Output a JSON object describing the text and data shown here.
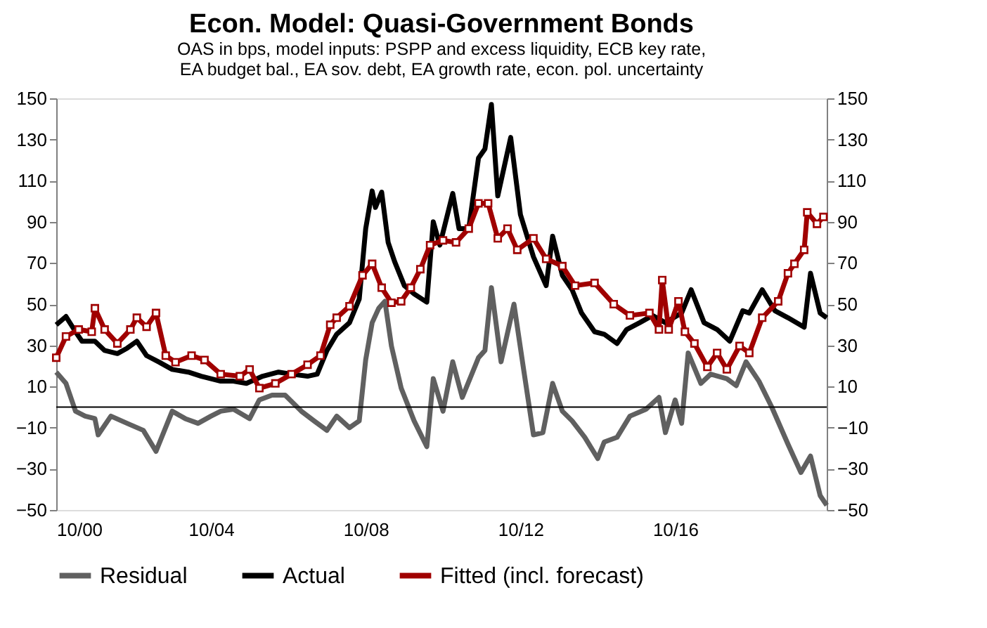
{
  "chart_data": {
    "type": "line",
    "title": "Econ. Model: Quasi-Government Bonds",
    "subtitle": "OAS in bps, model inputs: PSPP and excess liquidity, ECB key rate, EA budget bal., EA sov. debt, EA growth rate, econ. pol. uncertainty",
    "xlim": [
      "2000-10",
      "2020-09"
    ],
    "xticks": [
      {
        "value": "2000-10",
        "label": "10/00"
      },
      {
        "value": "2004-10",
        "label": "10/04"
      },
      {
        "value": "2008-10",
        "label": "10/08"
      },
      {
        "value": "2012-10",
        "label": "10/12"
      },
      {
        "value": "2016-10",
        "label": "10/16"
      }
    ],
    "ylim": [
      -50,
      150
    ],
    "yticks": [
      -50,
      -30,
      -10,
      10,
      30,
      50,
      70,
      90,
      110,
      130,
      150
    ],
    "y2lim": [
      -50,
      150
    ],
    "y2ticks": [
      -50,
      -30,
      -10,
      10,
      30,
      50,
      70,
      90,
      110,
      130,
      150
    ],
    "grid": false,
    "legend": "bottom",
    "ref_lines": [
      {
        "axis": "y",
        "value": 0,
        "color": "#000000"
      }
    ],
    "series": [
      {
        "name": "Residual",
        "color": "#606060",
        "marker": "none",
        "x": [
          "2000-10",
          "2001-01",
          "2001-04",
          "2001-07",
          "2001-10",
          "2001-11",
          "2002-03",
          "2002-08",
          "2003-01",
          "2003-05",
          "2003-10",
          "2004-02",
          "2004-06",
          "2004-10",
          "2005-01",
          "2005-05",
          "2005-10",
          "2006-01",
          "2006-05",
          "2006-09",
          "2007-02",
          "2007-06",
          "2007-10",
          "2008-01",
          "2008-05",
          "2008-08",
          "2008-10",
          "2008-12",
          "2009-02",
          "2009-04",
          "2009-06",
          "2009-09",
          "2010-01",
          "2010-05",
          "2010-07",
          "2010-10",
          "2011-01",
          "2011-04",
          "2011-09",
          "2011-11",
          "2012-01",
          "2012-04",
          "2012-08",
          "2012-11",
          "2013-02",
          "2013-05",
          "2013-08",
          "2013-11",
          "2014-02",
          "2014-06",
          "2014-10",
          "2014-12",
          "2015-04",
          "2015-08",
          "2016-01",
          "2016-05",
          "2016-07",
          "2016-10",
          "2016-12",
          "2017-02",
          "2017-06",
          "2017-09",
          "2018-02",
          "2018-05",
          "2018-08",
          "2018-12",
          "2019-04",
          "2019-09",
          "2020-01",
          "2020-04",
          "2020-07",
          "2020-09"
        ],
        "values": [
          17,
          11.5,
          -2,
          -4.4,
          -5.6,
          -13.5,
          -4.4,
          -7.9,
          -11.3,
          -21.5,
          -2,
          -5.6,
          -7.9,
          -4.4,
          -2,
          -1,
          -5.6,
          3.5,
          5.8,
          5.8,
          -2,
          -6.7,
          -11.3,
          -4.4,
          -10,
          -6.7,
          23,
          41,
          48,
          51.4,
          29.7,
          9.2,
          -6.7,
          -19.2,
          13.8,
          -2,
          22,
          4.7,
          24,
          27.5,
          58,
          22,
          50,
          18,
          -13.5,
          -12.4,
          11.5,
          -2,
          -6.7,
          -14.7,
          -25,
          -17,
          -14.7,
          -4.4,
          -1,
          4.7,
          -12.4,
          3.5,
          -7.9,
          26.3,
          11.5,
          16,
          13.8,
          10.4,
          22,
          12.6,
          0,
          -18,
          -31.8,
          -23.8,
          -43,
          -47.7
        ]
      },
      {
        "name": "Actual",
        "color": "#000000",
        "marker": "none",
        "x": [
          "2000-10",
          "2001-01",
          "2001-04",
          "2001-06",
          "2001-10",
          "2002-01",
          "2002-05",
          "2002-08",
          "2002-11",
          "2003-02",
          "2003-06",
          "2003-10",
          "2004-03",
          "2004-07",
          "2005-01",
          "2005-05",
          "2005-09",
          "2006-02",
          "2006-07",
          "2006-11",
          "2007-04",
          "2007-07",
          "2007-10",
          "2008-01",
          "2008-05",
          "2008-08",
          "2008-10",
          "2008-12",
          "2009-01",
          "2009-03",
          "2009-05",
          "2009-07",
          "2009-10",
          "2010-01",
          "2010-05",
          "2010-07",
          "2010-09",
          "2011-01",
          "2011-03",
          "2011-06",
          "2011-09",
          "2011-11",
          "2012-01",
          "2012-03",
          "2012-07",
          "2012-10",
          "2013-02",
          "2013-06",
          "2013-08",
          "2013-11",
          "2014-02",
          "2014-05",
          "2014-09",
          "2014-12",
          "2015-04",
          "2015-07",
          "2015-11",
          "2016-03",
          "2016-07",
          "2016-12",
          "2017-03",
          "2017-07",
          "2017-11",
          "2018-03",
          "2018-07",
          "2018-09",
          "2019-01",
          "2019-05",
          "2019-09",
          "2020-02",
          "2020-04",
          "2020-07",
          "2020-09"
        ],
        "values": [
          40,
          44,
          36.6,
          32,
          32,
          27.5,
          26,
          28.6,
          32,
          25,
          21.8,
          18.3,
          17,
          15,
          12.6,
          12.6,
          11.5,
          15,
          17,
          16,
          15,
          16,
          27.5,
          35.4,
          41,
          52.5,
          86.7,
          105,
          97,
          104.4,
          80,
          70.7,
          59,
          55,
          51,
          90,
          78.7,
          103.8,
          86.7,
          86.7,
          121,
          125.4,
          147,
          102.6,
          131,
          93.5,
          73,
          59,
          83,
          64,
          57,
          45.7,
          36.6,
          35.4,
          30.9,
          37.7,
          41,
          44.5,
          41,
          45.7,
          57,
          41,
          37.7,
          32,
          46.8,
          45.7,
          57,
          46.8,
          43.4,
          38.8,
          65,
          45.7,
          43.4
        ]
      },
      {
        "name": "Fitted (incl. forecast)",
        "color": "#a00000",
        "marker": "square",
        "x": [
          "2000-10",
          "2001-01",
          "2001-05",
          "2001-09",
          "2001-10",
          "2002-01",
          "2002-05",
          "2002-09",
          "2002-11",
          "2003-02",
          "2003-05",
          "2003-08",
          "2003-11",
          "2004-04",
          "2004-08",
          "2005-01",
          "2005-07",
          "2005-10",
          "2006-01",
          "2006-06",
          "2006-11",
          "2007-04",
          "2007-08",
          "2007-11",
          "2008-01",
          "2008-05",
          "2008-09",
          "2008-12",
          "2009-03",
          "2009-06",
          "2009-09",
          "2009-12",
          "2010-03",
          "2010-06",
          "2010-10",
          "2011-02",
          "2011-06",
          "2011-09",
          "2011-12",
          "2012-03",
          "2012-06",
          "2012-09",
          "2013-02",
          "2013-06",
          "2013-11",
          "2014-03",
          "2014-09",
          "2015-03",
          "2015-08",
          "2016-02",
          "2016-05",
          "2016-06",
          "2016-08",
          "2016-11",
          "2017-01",
          "2017-04",
          "2017-08",
          "2017-11",
          "2018-02",
          "2018-06",
          "2018-09",
          "2019-01",
          "2019-06",
          "2019-09",
          "2019-11",
          "2020-02",
          "2020-03",
          "2020-06",
          "2020-08"
        ],
        "values": [
          24,
          34.3,
          37.7,
          36.6,
          48,
          37.7,
          30.9,
          37.7,
          43.4,
          39,
          45.7,
          25,
          21.8,
          25,
          22.9,
          16,
          15,
          18.3,
          9.2,
          11.5,
          16,
          20.6,
          25,
          40,
          43.4,
          49,
          64,
          69.6,
          58,
          50.7,
          51.4,
          58,
          67,
          78.7,
          81,
          80,
          86.7,
          99,
          99,
          82,
          86.7,
          76.4,
          82,
          72,
          68.5,
          59,
          60.3,
          50,
          44.5,
          45.7,
          37.7,
          61.7,
          37.7,
          51.4,
          36.6,
          30.9,
          19.5,
          26.3,
          18.3,
          29.7,
          26.3,
          43.4,
          51.4,
          65,
          69.6,
          76.4,
          94.6,
          89,
          92.4
        ]
      }
    ]
  }
}
